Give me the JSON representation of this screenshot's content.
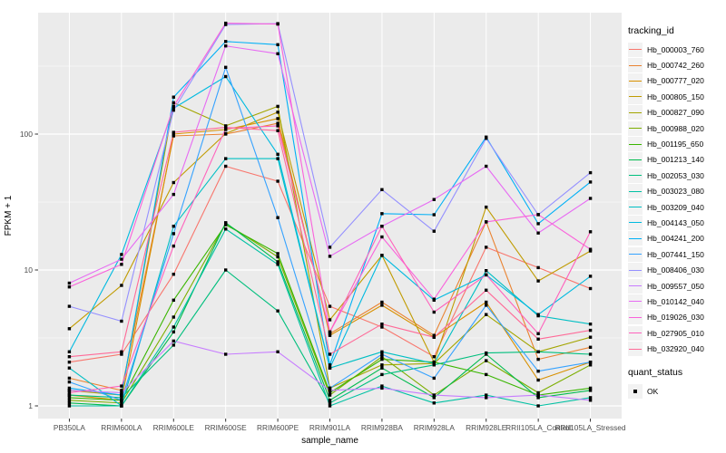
{
  "chart_data": {
    "type": "line",
    "title": "",
    "xlabel": "sample_name",
    "ylabel": "FPKM + 1",
    "y_scale": "log10",
    "y_ticks": [
      {
        "label": "1",
        "value": 1
      },
      {
        "label": "10",
        "value": 10
      },
      {
        "label": "100",
        "value": 100
      }
    ],
    "y_minor_ticks": [
      3.1623,
      31.623,
      316.23
    ],
    "grid": true,
    "legend_position": "right",
    "marker": {
      "shape": "square",
      "color": "#000000"
    },
    "x_axis": {
      "label": "sample_name",
      "categories": [
        "PB350LA",
        "RRIM600LA",
        "RRIM600LE",
        "RRIM600SE",
        "RRIM600PE",
        "RRIM901LA",
        "RRIM928BA",
        "RRIM928LA",
        "RRIM928LE",
        "RRII105LA_Control",
        "RRII105LA_Stressed"
      ]
    },
    "series": [
      {
        "tracking_id": "Hb_000003_760",
        "color": "#F8766D",
        "values": [
          2.1,
          2.4,
          9.3,
          58,
          45,
          5.4,
          3.8,
          2.3,
          14.7,
          10.4,
          7.3
        ]
      },
      {
        "tracking_id": "Hb_000742_260",
        "color": "#EA8331",
        "values": [
          1.6,
          1.3,
          97,
          100,
          120,
          3.4,
          5.8,
          3.3,
          22.6,
          2.2,
          2.7
        ]
      },
      {
        "tracking_id": "Hb_000777_020",
        "color": "#D89000",
        "values": [
          1.2,
          1.1,
          100,
          108,
          130,
          3.3,
          5.5,
          3.2,
          5.8,
          1.55,
          2.1
        ]
      },
      {
        "tracking_id": "Hb_000805_150",
        "color": "#C09B00",
        "values": [
          3.7,
          7.7,
          44,
          101,
          145,
          4.3,
          12.8,
          2.1,
          29,
          8.3,
          13.8
        ]
      },
      {
        "tracking_id": "Hb_000827_090",
        "color": "#A3A500",
        "values": [
          1.3,
          1.2,
          170,
          115,
          160,
          1.35,
          2.0,
          2.05,
          4.7,
          2.5,
          3.2
        ]
      },
      {
        "tracking_id": "Hb_000988_020",
        "color": "#7CAE00",
        "values": [
          1.1,
          1.05,
          4.5,
          22,
          12.5,
          1.2,
          2.3,
          1.2,
          2.15,
          1.25,
          2.0
        ]
      },
      {
        "tracking_id": "Hb_001195_650",
        "color": "#39B600",
        "values": [
          1.15,
          1.1,
          6.0,
          21.5,
          13.2,
          1.25,
          2.2,
          2.1,
          1.7,
          1.2,
          1.35
        ]
      },
      {
        "tracking_id": "Hb_001213_140",
        "color": "#00BB4E",
        "values": [
          1.05,
          1.0,
          3.5,
          22.3,
          11.5,
          1.1,
          1.9,
          1.15,
          2.4,
          1.15,
          1.3
        ]
      },
      {
        "tracking_id": "Hb_002053_030",
        "color": "#00BF7D",
        "values": [
          1.2,
          1.15,
          2.8,
          10,
          5.0,
          1.05,
          1.7,
          2.0,
          2.45,
          2.5,
          2.4
        ]
      },
      {
        "tracking_id": "Hb_003023_080",
        "color": "#00C1A3",
        "values": [
          1.0,
          1.0,
          3.8,
          20,
          11,
          1.0,
          1.4,
          1.05,
          1.2,
          1.0,
          1.15
        ]
      },
      {
        "tracking_id": "Hb_003209_040",
        "color": "#00BFC4",
        "values": [
          1.9,
          1.0,
          21,
          66,
          66,
          1.9,
          2.5,
          2.05,
          9.9,
          4.6,
          4.0
        ]
      },
      {
        "tracking_id": "Hb_004143_050",
        "color": "#00BAE0",
        "values": [
          2.5,
          13,
          155,
          265,
          71,
          1.9,
          12.8,
          6.0,
          9.2,
          4.7,
          9.0
        ]
      },
      {
        "tracking_id": "Hb_004241_200",
        "color": "#00B0F6",
        "values": [
          1.35,
          1.2,
          187,
          480,
          455,
          2.0,
          26,
          25.5,
          95,
          21.9,
          44.4
        ]
      },
      {
        "tracking_id": "Hb_007441_150",
        "color": "#35A2FF",
        "values": [
          1.5,
          1.1,
          18.5,
          310,
          24.3,
          1.35,
          2.4,
          1.6,
          5.5,
          1.8,
          2.1
        ]
      },
      {
        "tracking_id": "Hb_008406_030",
        "color": "#9590FF",
        "values": [
          5.4,
          4.2,
          150,
          640,
          650,
          14.7,
          39,
          19.3,
          93,
          25.5,
          52
        ]
      },
      {
        "tracking_id": "Hb_009557_050",
        "color": "#C77CFF",
        "values": [
          1.3,
          1.25,
          3.0,
          2.4,
          2.5,
          1.3,
          1.35,
          1.2,
          1.15,
          1.2,
          1.1
        ]
      },
      {
        "tracking_id": "Hb_010142_040",
        "color": "#E76BF3",
        "values": [
          8.0,
          12,
          36,
          445,
          390,
          12.6,
          21,
          33,
          58,
          18.7,
          33.6
        ]
      },
      {
        "tracking_id": "Hb_019026_030",
        "color": "#FA62DB",
        "values": [
          7.5,
          11,
          160,
          655,
          645,
          3.5,
          17.5,
          6.1,
          22.6,
          25.6,
          14.2
        ]
      },
      {
        "tracking_id": "Hb_027905_010",
        "color": "#FF62BC",
        "values": [
          1.25,
          1.4,
          15,
          110,
          115,
          3.5,
          21,
          4.9,
          9.2,
          3.4,
          19.1
        ]
      },
      {
        "tracking_id": "Hb_032920_040",
        "color": "#FF6A98",
        "values": [
          2.3,
          2.5,
          103,
          112,
          106,
          2.4,
          4.0,
          3.2,
          7.1,
          3.1,
          3.6
        ]
      }
    ],
    "legends": {
      "tracking": {
        "title": "tracking_id"
      },
      "quant": {
        "title": "quant_status",
        "items": [
          {
            "label": "OK",
            "marker": "black-square"
          }
        ]
      }
    }
  },
  "colors": {
    "panel_bg": "#EBEBEB",
    "grid_major": "#FFFFFF",
    "grid_minor": "#FFFFFF",
    "tick_label": "#4D4D4D",
    "tick_mark": "#333333",
    "axis_title": "#000000",
    "legend_key_bg": "#F2F2F2",
    "point": "#000000"
  }
}
